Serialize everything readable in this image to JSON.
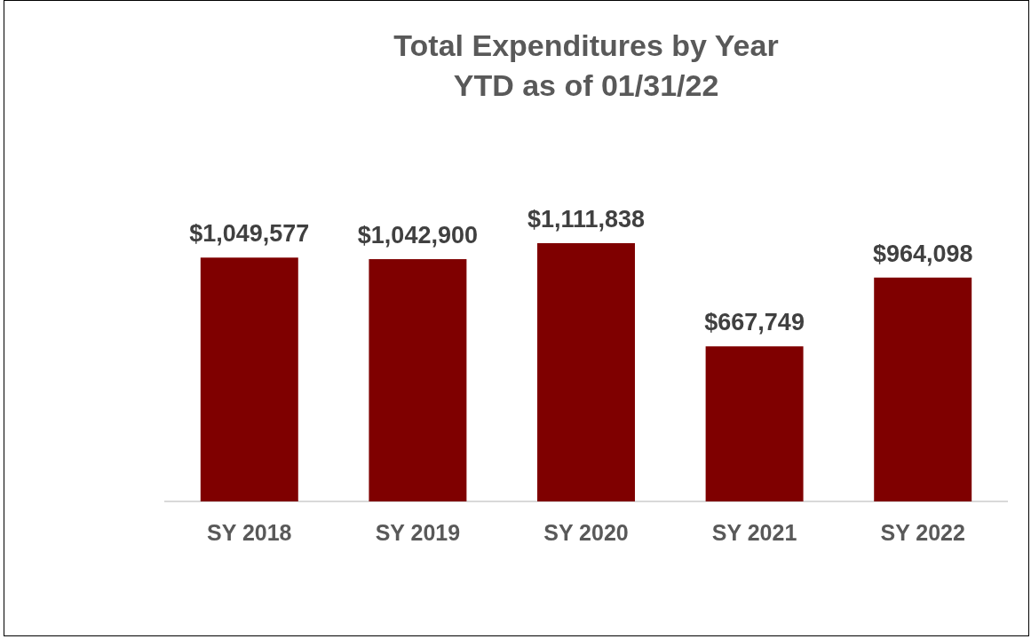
{
  "chart_data": {
    "type": "bar",
    "title": "Total Expenditures by Year",
    "subtitle": "YTD as of 01/31/22",
    "categories": [
      "SY 2018",
      "SY 2019",
      "SY 2020",
      "SY 2021",
      "SY 2022"
    ],
    "values": [
      1049577,
      1042900,
      1111838,
      667749,
      964098
    ],
    "value_labels": [
      "$1,049,577",
      "$1,042,900",
      "$1,111,838",
      "$667,749",
      "$964,098"
    ],
    "color": "#7f0000",
    "grid": false,
    "legend": false,
    "tick_labels": "x"
  }
}
